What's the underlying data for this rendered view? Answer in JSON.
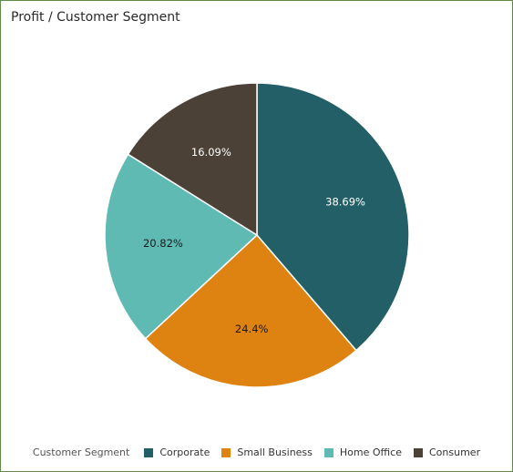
{
  "title": "Profit / Customer Segment",
  "chart_data": {
    "type": "pie",
    "title": "Profit / Customer Segment",
    "legend_title": "Customer Segment",
    "legend_position": "bottom",
    "slices": [
      {
        "label": "Corporate",
        "value": 38.69,
        "display": "38.69%",
        "color": "#225f66",
        "label_color": "#ffffff"
      },
      {
        "label": "Small Business",
        "value": 24.4,
        "display": "24.4%",
        "color": "#de8212",
        "label_color": "#1a1a1a"
      },
      {
        "label": "Home Office",
        "value": 20.82,
        "display": "20.82%",
        "color": "#5fbab4",
        "label_color": "#1a1a1a"
      },
      {
        "label": "Consumer",
        "value": 16.09,
        "display": "16.09%",
        "color": "#4c4137",
        "label_color": "#ffffff"
      }
    ]
  }
}
